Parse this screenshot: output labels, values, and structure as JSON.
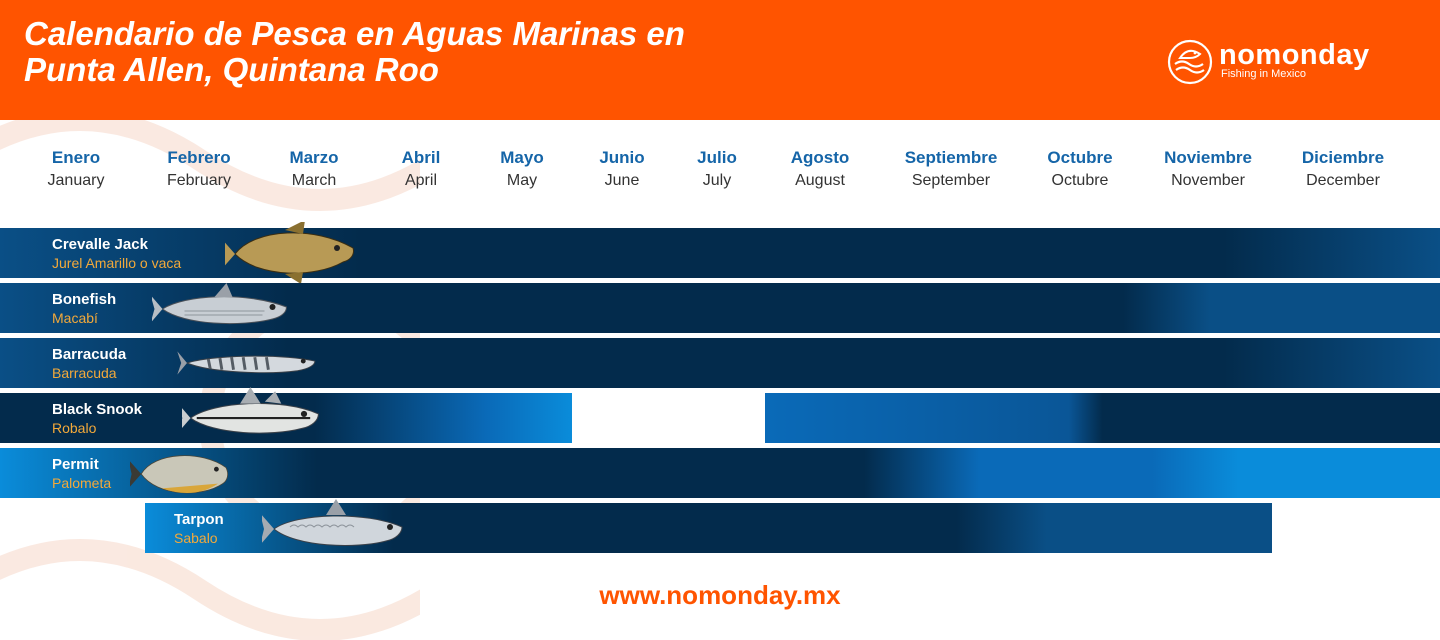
{
  "header": {
    "title_line1": "Calendario de Pesca en Aguas Marinas en",
    "title_line2": "Punta Allen, Quintana Roo",
    "logo_name": "nomonday",
    "logo_tagline": "Fishing in Mexico"
  },
  "footer": {
    "website": "www.nomonday.mx"
  },
  "colors": {
    "header": "#FF5400",
    "high_season": "#032B4C",
    "mid_season": "#0A4F86",
    "low_season": "#0A8CDA",
    "local_name": "#F3A93A",
    "month_es": "#1565A8"
  },
  "chart_data": {
    "type": "table",
    "months": [
      {
        "es": "Enero",
        "en": "January"
      },
      {
        "es": "Febrero",
        "en": "February"
      },
      {
        "es": "Marzo",
        "en": "March"
      },
      {
        "es": "Abril",
        "en": "April"
      },
      {
        "es": "Mayo",
        "en": "May"
      },
      {
        "es": "Junio",
        "en": "June"
      },
      {
        "es": "Julio",
        "en": "July"
      },
      {
        "es": "Agosto",
        "en": "August"
      },
      {
        "es": "Septiembre",
        "en": "September"
      },
      {
        "es": "Octubre",
        "en": "Octubre"
      },
      {
        "es": "Noviembre",
        "en": "November"
      },
      {
        "es": "Diciembre",
        "en": "December"
      }
    ],
    "species": [
      {
        "name": "Crevalle Jack",
        "local": "Jurel Amarillo o vaca",
        "icon": "crevalle-jack-icon",
        "season": [
          {
            "start": 1,
            "end": 12,
            "gradient": [
              [
                0,
                "#0A4F86"
              ],
              [
                0.25,
                "#032B4C"
              ],
              [
                0.85,
                "#032B4C"
              ],
              [
                1,
                "#0A4F86"
              ]
            ]
          }
        ]
      },
      {
        "name": "Bonefish",
        "local": "Macabí",
        "icon": "bonefish-icon",
        "season": [
          {
            "start": 1,
            "end": 12,
            "gradient": [
              [
                0,
                "#0A4F86"
              ],
              [
                0.2,
                "#032B4C"
              ],
              [
                0.78,
                "#032B4C"
              ],
              [
                0.84,
                "#0A4F86"
              ],
              [
                1,
                "#0A4F86"
              ]
            ]
          }
        ]
      },
      {
        "name": "Barracuda",
        "local": "Barracuda",
        "icon": "barracuda-icon",
        "season": [
          {
            "start": 1,
            "end": 12,
            "gradient": [
              [
                0,
                "#0A4F86"
              ],
              [
                0.2,
                "#032B4C"
              ],
              [
                0.85,
                "#032B4C"
              ],
              [
                1,
                "#0A4F86"
              ]
            ]
          }
        ]
      },
      {
        "name": "Black Snook",
        "local": "Robalo",
        "icon": "black-snook-icon",
        "season": [
          {
            "start": 1,
            "end": 5,
            "gradient": [
              [
                0,
                "#032B4C"
              ],
              [
                0.55,
                "#032B4C"
              ],
              [
                0.85,
                "#0A6AB8"
              ],
              [
                1,
                "#0A8CDA"
              ]
            ]
          },
          {
            "start": 8,
            "end": 12,
            "gradient": [
              [
                0,
                "#0A6AB8"
              ],
              [
                0.45,
                "#0A5697"
              ],
              [
                0.5,
                "#032B4C"
              ],
              [
                1,
                "#032B4C"
              ]
            ]
          }
        ]
      },
      {
        "name": "Permit",
        "local": "Palometa",
        "icon": "permit-icon",
        "season": [
          {
            "start": 1,
            "end": 12,
            "gradient": [
              [
                0,
                "#0A8CDA"
              ],
              [
                0.22,
                "#032B4C"
              ],
              [
                0.6,
                "#032B4C"
              ],
              [
                0.68,
                "#0A6AB8"
              ],
              [
                0.8,
                "#0A6AB8"
              ],
              [
                0.86,
                "#0A8CDA"
              ],
              [
                1,
                "#0A8CDA"
              ]
            ]
          }
        ]
      },
      {
        "name": "Tarpon",
        "local": "Sabalo",
        "icon": "tarpon-icon",
        "season": [
          {
            "start": 2,
            "end": 11,
            "gradient": [
              [
                0,
                "#0A8CDA"
              ],
              [
                0.22,
                "#032B4C"
              ],
              [
                0.72,
                "#032B4C"
              ],
              [
                0.8,
                "#0A4F86"
              ],
              [
                1,
                "#0A4F86"
              ]
            ]
          }
        ]
      }
    ]
  }
}
